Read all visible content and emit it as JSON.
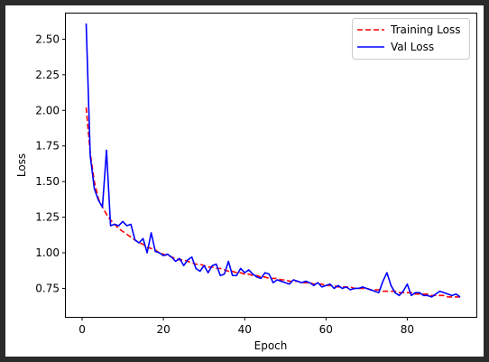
{
  "chart_data": {
    "type": "line",
    "title": "",
    "xlabel": "Epoch",
    "ylabel": "Loss",
    "xlim": [
      -4,
      97
    ],
    "ylim": [
      0.55,
      2.68
    ],
    "xticks": [
      0,
      20,
      40,
      60,
      80
    ],
    "yticks": [
      0.75,
      1.0,
      1.25,
      1.5,
      1.75,
      2.0,
      2.25,
      2.5
    ],
    "xtick_labels": [
      "0",
      "20",
      "40",
      "60",
      "80"
    ],
    "ytick_labels": [
      "0.75",
      "1.00",
      "1.25",
      "1.50",
      "1.75",
      "2.00",
      "2.25",
      "2.50"
    ],
    "grid": false,
    "legend": {
      "placement": "top-right"
    },
    "series": [
      {
        "name": "Training Loss",
        "color": "#ff0000",
        "style": "dashed",
        "x": [
          1,
          2,
          3,
          4,
          5,
          6,
          7,
          8,
          9,
          10,
          11,
          12,
          13,
          14,
          15,
          16,
          17,
          18,
          19,
          20,
          21,
          22,
          23,
          24,
          25,
          26,
          27,
          28,
          29,
          30,
          31,
          32,
          33,
          34,
          35,
          36,
          37,
          38,
          39,
          40,
          41,
          42,
          43,
          44,
          45,
          46,
          47,
          48,
          49,
          50,
          51,
          52,
          53,
          54,
          55,
          56,
          57,
          58,
          59,
          60,
          61,
          62,
          63,
          64,
          65,
          66,
          67,
          68,
          69,
          70,
          71,
          72,
          73,
          74,
          75,
          76,
          77,
          78,
          79,
          80,
          81,
          82,
          83,
          84,
          85,
          86,
          87,
          88,
          89,
          90,
          91,
          92,
          93
        ],
        "values": [
          2.02,
          1.7,
          1.5,
          1.38,
          1.32,
          1.27,
          1.23,
          1.2,
          1.17,
          1.15,
          1.13,
          1.11,
          1.09,
          1.07,
          1.06,
          1.04,
          1.03,
          1.02,
          1.0,
          0.99,
          0.98,
          0.97,
          0.96,
          0.95,
          0.95,
          0.94,
          0.93,
          0.92,
          0.92,
          0.91,
          0.9,
          0.9,
          0.89,
          0.89,
          0.88,
          0.87,
          0.87,
          0.86,
          0.86,
          0.85,
          0.85,
          0.84,
          0.84,
          0.83,
          0.83,
          0.82,
          0.82,
          0.82,
          0.81,
          0.81,
          0.8,
          0.8,
          0.8,
          0.79,
          0.79,
          0.79,
          0.78,
          0.78,
          0.78,
          0.77,
          0.77,
          0.77,
          0.76,
          0.76,
          0.76,
          0.76,
          0.75,
          0.75,
          0.75,
          0.75,
          0.74,
          0.74,
          0.74,
          0.73,
          0.73,
          0.73,
          0.73,
          0.72,
          0.72,
          0.72,
          0.72,
          0.71,
          0.71,
          0.71,
          0.71,
          0.7,
          0.7,
          0.7,
          0.7,
          0.69,
          0.69,
          0.69,
          0.69
        ]
      },
      {
        "name": "Val Loss",
        "color": "#0000ff",
        "style": "solid",
        "x": [
          1,
          2,
          3,
          4,
          5,
          6,
          7,
          8,
          9,
          10,
          11,
          12,
          13,
          14,
          15,
          16,
          17,
          18,
          19,
          20,
          21,
          22,
          23,
          24,
          25,
          26,
          27,
          28,
          29,
          30,
          31,
          32,
          33,
          34,
          35,
          36,
          37,
          38,
          39,
          40,
          41,
          42,
          43,
          44,
          45,
          46,
          47,
          48,
          49,
          50,
          51,
          52,
          53,
          54,
          55,
          56,
          57,
          58,
          59,
          60,
          61,
          62,
          63,
          64,
          65,
          66,
          67,
          68,
          69,
          70,
          71,
          72,
          73,
          74,
          75,
          76,
          77,
          78,
          79,
          80,
          81,
          82,
          83,
          84,
          85,
          86,
          87,
          88,
          89,
          90,
          91,
          92,
          93
        ],
        "values": [
          2.61,
          1.68,
          1.45,
          1.37,
          1.32,
          1.72,
          1.19,
          1.2,
          1.19,
          1.22,
          1.19,
          1.2,
          1.09,
          1.07,
          1.1,
          1.0,
          1.14,
          1.01,
          1.0,
          0.98,
          0.99,
          0.97,
          0.94,
          0.96,
          0.91,
          0.95,
          0.97,
          0.89,
          0.87,
          0.91,
          0.86,
          0.91,
          0.92,
          0.84,
          0.85,
          0.94,
          0.84,
          0.84,
          0.89,
          0.86,
          0.88,
          0.85,
          0.83,
          0.82,
          0.86,
          0.85,
          0.79,
          0.81,
          0.8,
          0.79,
          0.78,
          0.81,
          0.8,
          0.79,
          0.8,
          0.79,
          0.77,
          0.79,
          0.76,
          0.77,
          0.78,
          0.75,
          0.77,
          0.75,
          0.76,
          0.74,
          0.75,
          0.75,
          0.76,
          0.75,
          0.74,
          0.73,
          0.72,
          0.8,
          0.86,
          0.77,
          0.72,
          0.7,
          0.73,
          0.78,
          0.7,
          0.72,
          0.72,
          0.7,
          0.7,
          0.69,
          0.71,
          0.73,
          0.72,
          0.71,
          0.7,
          0.71,
          0.69
        ]
      }
    ]
  }
}
